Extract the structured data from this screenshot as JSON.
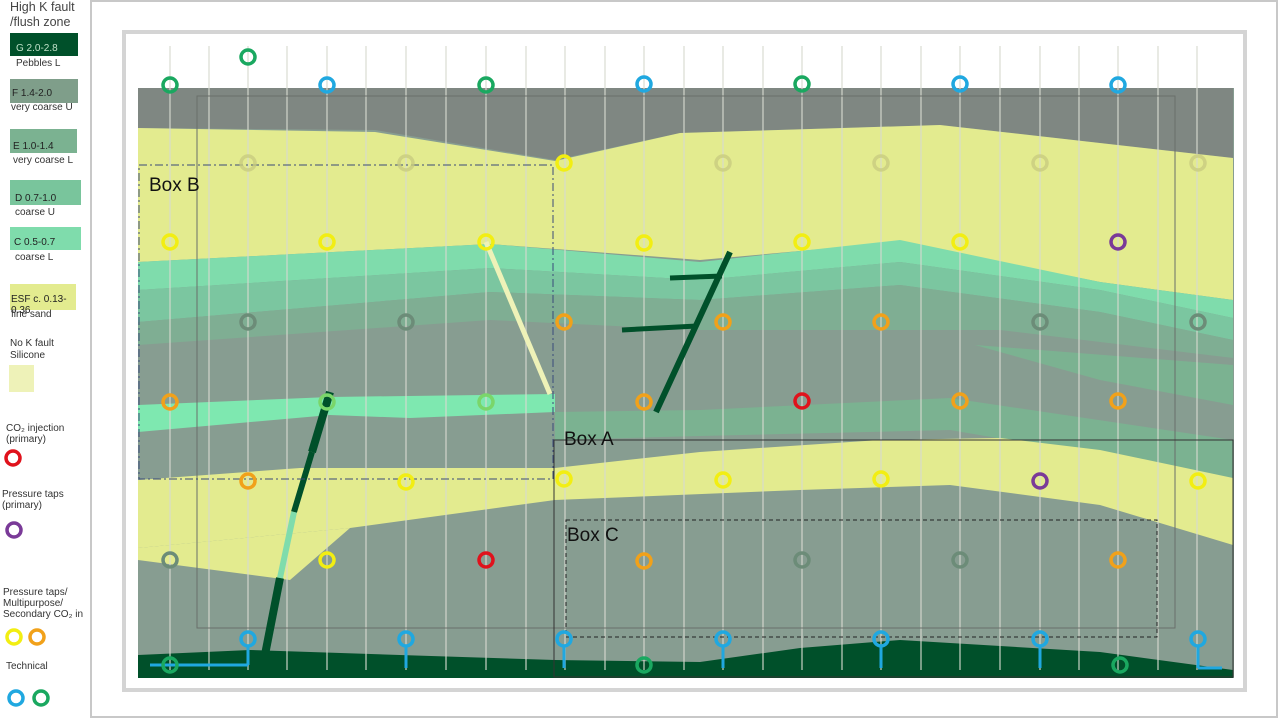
{
  "legend": {
    "title": "High K fault /flush zone",
    "items": [
      {
        "code": "G 2.0-2.8",
        "desc": "Pebbles L",
        "color": "#00502a"
      },
      {
        "code": "F 1.4-2.0",
        "desc": "very coarse U",
        "color": "#7f9e8a"
      },
      {
        "code": "E 1.0-1.4",
        "desc": "very coarse L",
        "color": "#7bb291"
      },
      {
        "code": "D 0.7-1.0",
        "desc": "coarse U",
        "color": "#79c59c"
      },
      {
        "code": "C 0.5-0.7",
        "desc": "coarse L",
        "color": "#7fdcac"
      },
      {
        "code": "ESF c. 0.13-0.36",
        "desc": "fine sand",
        "color": "#e3eb8f"
      }
    ],
    "no_k_fault": "No K fault",
    "silicone": "Silicone",
    "silicone_color": "#eef2b8",
    "co2_injection": "CO₂ injection (primary)",
    "pressure_taps": "Pressure taps (primary)",
    "multipurpose": "Pressure taps/ Multipurpose/ Secondary CO₂ in",
    "technical": "Technical",
    "port_colors": {
      "injection": "#e0121c",
      "pressure": "#7a3a98",
      "yellow": "#f2ee12",
      "orange": "#f1a11a",
      "technical_blue": "#20a8e0",
      "technical_green": "#1aa860"
    }
  },
  "boxes": {
    "a": "Box A",
    "b": "Box B",
    "c": "Box C"
  },
  "colors": {
    "grey": "#879d91",
    "dark_grey": "#7f8782",
    "fine_sand": "#e3eb8f",
    "fault": "#00502a"
  }
}
